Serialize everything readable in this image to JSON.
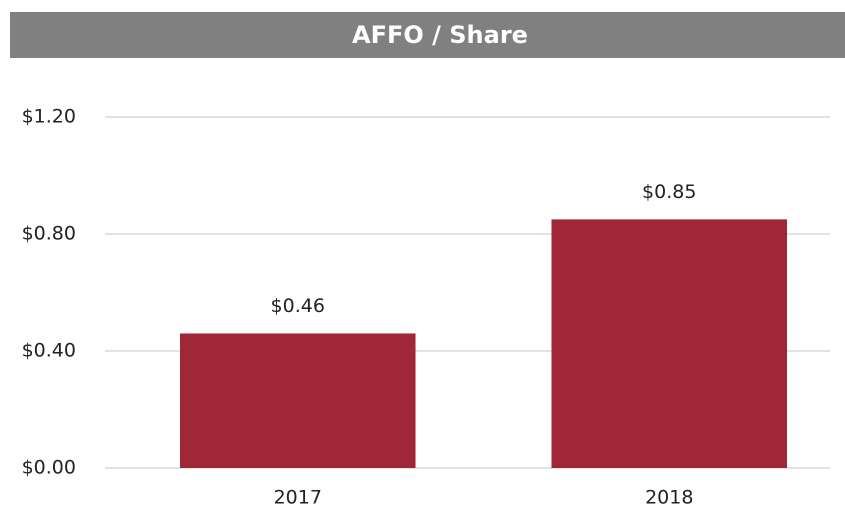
{
  "chart_data": {
    "type": "bar",
    "title": "AFFO / Share",
    "categories": [
      "2017",
      "2018"
    ],
    "values": [
      0.46,
      0.85
    ],
    "value_labels": [
      "$0.46",
      "$0.85"
    ],
    "color": "#a02836",
    "ylim": [
      0,
      1.2
    ],
    "yticks": [
      {
        "value": 0,
        "label": "$0.00"
      },
      {
        "value": 0.4,
        "label": "$0.40"
      },
      {
        "value": 0.8,
        "label": "$0.80"
      },
      {
        "value": 1.2,
        "label": "$1.20"
      }
    ],
    "grid": true
  }
}
